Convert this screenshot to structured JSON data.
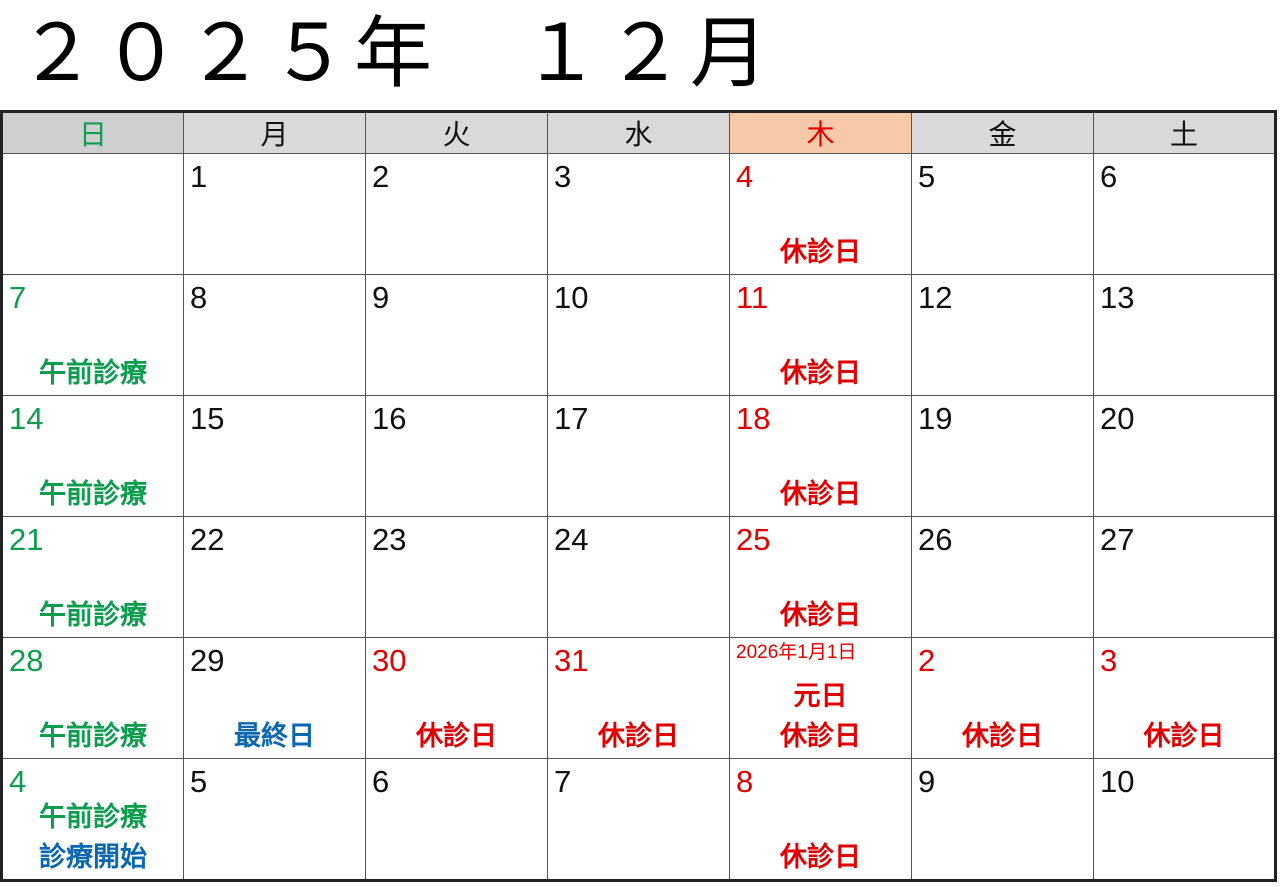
{
  "title": "２０２５年　１２月",
  "colors": {
    "k": "#111111",
    "r": "#e00000",
    "g": "#0d9d4f",
    "b": "#0b68b0",
    "thursday_header_bg": "#f8c9a8"
  },
  "weekdays": [
    {
      "label": "日",
      "color": "g"
    },
    {
      "label": "月",
      "color": "k"
    },
    {
      "label": "火",
      "color": "k"
    },
    {
      "label": "水",
      "color": "k"
    },
    {
      "label": "木",
      "color": "r"
    },
    {
      "label": "金",
      "color": "k"
    },
    {
      "label": "土",
      "color": "k"
    }
  ],
  "weeks": [
    [
      {
        "day": "",
        "color": "k",
        "notes": []
      },
      {
        "day": "1",
        "color": "k",
        "notes": []
      },
      {
        "day": "2",
        "color": "k",
        "notes": []
      },
      {
        "day": "3",
        "color": "k",
        "notes": []
      },
      {
        "day": "4",
        "color": "r",
        "notes": [
          {
            "text": "休診日",
            "color": "r"
          }
        ]
      },
      {
        "day": "5",
        "color": "k",
        "notes": []
      },
      {
        "day": "6",
        "color": "k",
        "notes": []
      }
    ],
    [
      {
        "day": "7",
        "color": "g",
        "notes": [
          {
            "text": "午前診療",
            "color": "g"
          }
        ]
      },
      {
        "day": "8",
        "color": "k",
        "notes": []
      },
      {
        "day": "9",
        "color": "k",
        "notes": []
      },
      {
        "day": "10",
        "color": "k",
        "notes": []
      },
      {
        "day": "11",
        "color": "r",
        "notes": [
          {
            "text": "休診日",
            "color": "r"
          }
        ]
      },
      {
        "day": "12",
        "color": "k",
        "notes": []
      },
      {
        "day": "13",
        "color": "k",
        "notes": []
      }
    ],
    [
      {
        "day": "14",
        "color": "g",
        "notes": [
          {
            "text": "午前診療",
            "color": "g"
          }
        ]
      },
      {
        "day": "15",
        "color": "k",
        "notes": []
      },
      {
        "day": "16",
        "color": "k",
        "notes": []
      },
      {
        "day": "17",
        "color": "k",
        "notes": []
      },
      {
        "day": "18",
        "color": "r",
        "notes": [
          {
            "text": "休診日",
            "color": "r"
          }
        ]
      },
      {
        "day": "19",
        "color": "k",
        "notes": []
      },
      {
        "day": "20",
        "color": "k",
        "notes": []
      }
    ],
    [
      {
        "day": "21",
        "color": "g",
        "notes": [
          {
            "text": "午前診療",
            "color": "g"
          }
        ]
      },
      {
        "day": "22",
        "color": "k",
        "notes": []
      },
      {
        "day": "23",
        "color": "k",
        "notes": []
      },
      {
        "day": "24",
        "color": "k",
        "notes": []
      },
      {
        "day": "25",
        "color": "r",
        "notes": [
          {
            "text": "休診日",
            "color": "r"
          }
        ]
      },
      {
        "day": "26",
        "color": "k",
        "notes": []
      },
      {
        "day": "27",
        "color": "k",
        "notes": []
      }
    ],
    [
      {
        "day": "28",
        "color": "g",
        "notes": [
          {
            "text": "午前診療",
            "color": "g"
          }
        ]
      },
      {
        "day": "29",
        "color": "k",
        "notes": [
          {
            "text": "最終日",
            "color": "b"
          }
        ]
      },
      {
        "day": "30",
        "color": "r",
        "notes": [
          {
            "text": "休診日",
            "color": "r"
          }
        ]
      },
      {
        "day": "31",
        "color": "r",
        "notes": [
          {
            "text": "休診日",
            "color": "r"
          }
        ]
      },
      {
        "small_date": "2026年1月1日",
        "color": "r",
        "notes": [
          {
            "text": "元日",
            "color": "r"
          },
          {
            "text": "休診日",
            "color": "r"
          }
        ]
      },
      {
        "day": "2",
        "color": "r",
        "notes": [
          {
            "text": "休診日",
            "color": "r"
          }
        ]
      },
      {
        "day": "3",
        "color": "r",
        "notes": [
          {
            "text": "休診日",
            "color": "r"
          }
        ]
      }
    ],
    [
      {
        "day": "4",
        "color": "g",
        "notes": [
          {
            "text": "午前診療",
            "color": "g"
          },
          {
            "text": "診療開始",
            "color": "b"
          }
        ]
      },
      {
        "day": "5",
        "color": "k",
        "notes": []
      },
      {
        "day": "6",
        "color": "k",
        "notes": []
      },
      {
        "day": "7",
        "color": "k",
        "notes": []
      },
      {
        "day": "8",
        "color": "r",
        "notes": [
          {
            "text": "休診日",
            "color": "r"
          }
        ]
      },
      {
        "day": "9",
        "color": "k",
        "notes": []
      },
      {
        "day": "10",
        "color": "k",
        "notes": []
      }
    ]
  ]
}
